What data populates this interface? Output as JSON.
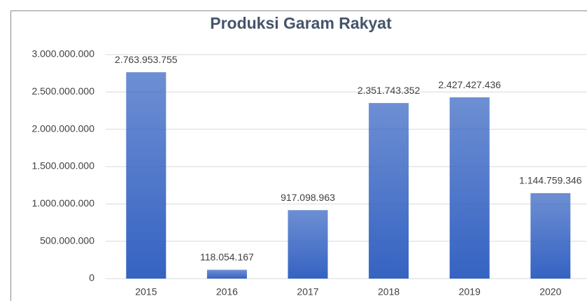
{
  "chart_data": {
    "type": "bar",
    "title": "Produksi Garam Rakyat",
    "categories": [
      "2015",
      "2016",
      "2017",
      "2018",
      "2019",
      "2020"
    ],
    "values": [
      2763953755,
      118054167,
      917098963,
      2351743352,
      2427427436,
      1144759346
    ],
    "value_labels": [
      "2.763.953.755",
      "118.054.167",
      "917.098.963",
      "2.351.743.352",
      "2.427.427.436",
      "1.144.759.346"
    ],
    "color": "#3563c2",
    "ylim": [
      0,
      3000000000
    ],
    "yticks": [
      0,
      {
        "value": 500000000,
        "label": "500.000.000"
      },
      {
        "value": 1000000000,
        "label": "1.000.000.000"
      },
      {
        "value": 1500000000,
        "label": "1.500.000.000"
      },
      {
        "value": 2000000000,
        "label": "2.000.000.000"
      },
      {
        "value": 2500000000,
        "label": "2.500.000.000"
      },
      {
        "value": 3000000000,
        "label": "3.000.000.000"
      }
    ],
    "grid": true
  }
}
